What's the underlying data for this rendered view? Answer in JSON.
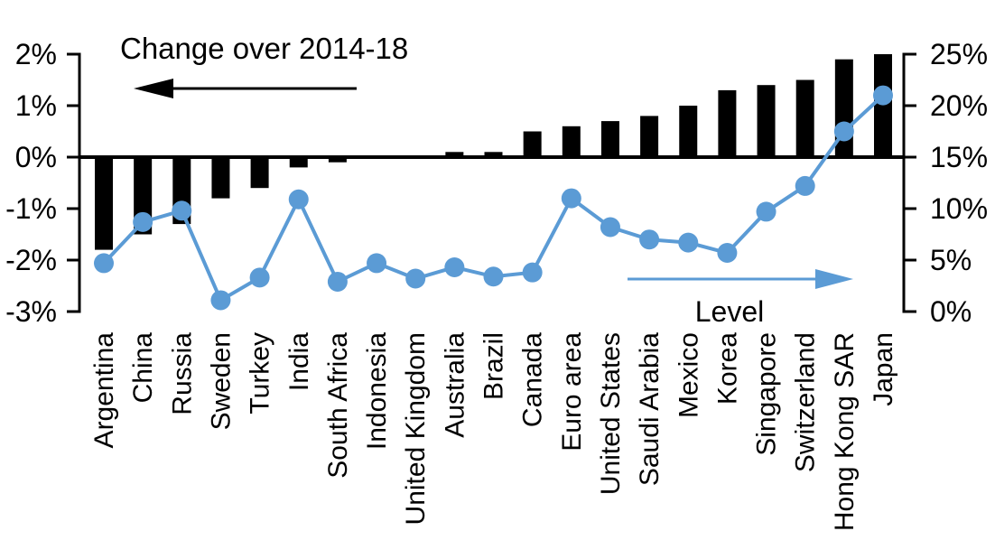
{
  "page": {
    "background": "#ffffff"
  },
  "chart_data": {
    "type": "bar",
    "subtype": "combo-bar-line-dual-axis",
    "title": "",
    "categories": [
      "Argentina",
      "China",
      "Russia",
      "Sweden",
      "Turkey",
      "India",
      "South Africa",
      "Indonesia",
      "United Kingdom",
      "Australia",
      "Brazil",
      "Canada",
      "Euro area",
      "United States",
      "Saudi Arabia",
      "Mexico",
      "Korea",
      "Singapore",
      "Switzerland",
      "Hong Kong SAR",
      "Japan"
    ],
    "series": [
      {
        "name": "Change over 2014-18",
        "type": "bar",
        "axis": "left",
        "color": "#000000",
        "values": [
          -1.8,
          -1.5,
          -1.3,
          -0.8,
          -0.6,
          -0.2,
          -0.1,
          0,
          0,
          0.1,
          0.1,
          0.5,
          0.6,
          0.7,
          0.8,
          1.0,
          1.3,
          1.4,
          1.5,
          1.9,
          2.0
        ]
      },
      {
        "name": "Level",
        "type": "line",
        "axis": "right",
        "color": "#5B9BD5",
        "values": [
          4.7,
          8.7,
          9.8,
          1.1,
          3.3,
          10.9,
          2.9,
          4.7,
          3.2,
          4.3,
          3.4,
          3.8,
          11.0,
          8.2,
          7.0,
          6.7,
          5.7,
          9.7,
          12.2,
          17.5,
          21.0
        ]
      }
    ],
    "left_axis": {
      "tick_labels": [
        "2%",
        "1%",
        "0%",
        "-1%",
        "-2%",
        "-3%"
      ],
      "tick_values": [
        2,
        1,
        0,
        -1,
        -2,
        -3
      ],
      "range": [
        -3,
        2
      ]
    },
    "right_axis": {
      "tick_labels": [
        "25%",
        "20%",
        "15%",
        "10%",
        "5%",
        "0%"
      ],
      "tick_values": [
        25,
        20,
        15,
        10,
        5,
        0
      ],
      "range": [
        0,
        25
      ]
    },
    "annotations": [
      {
        "label": "Change over 2014-18",
        "arrow": "left",
        "color": "#000000"
      },
      {
        "label": "Level",
        "arrow": "right",
        "color": "#5B9BD5"
      }
    ],
    "grid": false,
    "zero_line": true,
    "legend_position": "in-plot-arrows"
  }
}
